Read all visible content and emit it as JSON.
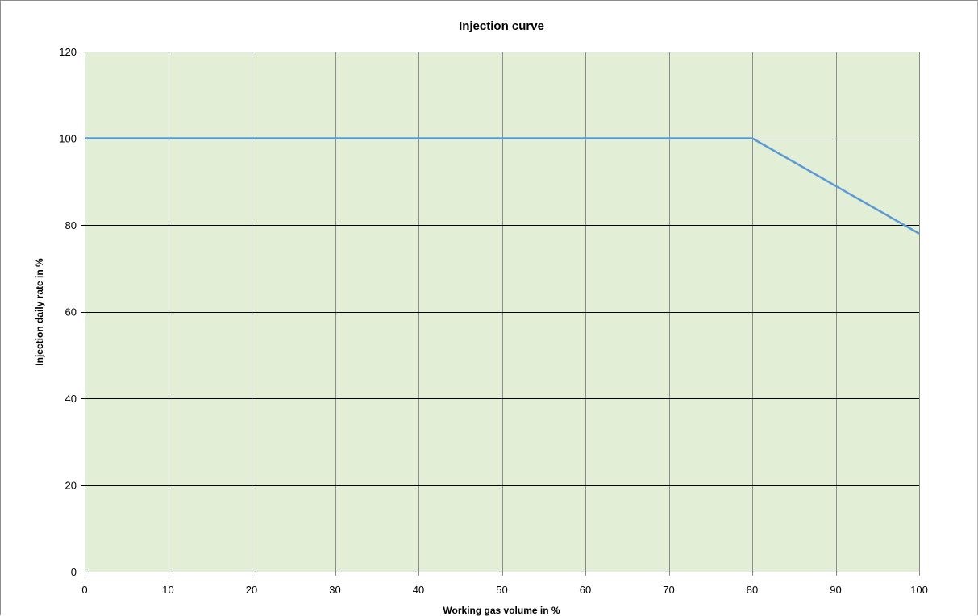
{
  "chart_data": {
    "type": "line",
    "title": "Injection curve",
    "xlabel": "Working gas volume in %",
    "ylabel": "Injection daily rate in %",
    "xlim": [
      0,
      100
    ],
    "ylim": [
      0,
      120
    ],
    "x_ticks": [
      0,
      10,
      20,
      30,
      40,
      50,
      60,
      70,
      80,
      90,
      100
    ],
    "y_ticks": [
      0,
      20,
      40,
      60,
      80,
      100,
      120
    ],
    "grid": true,
    "legend": "none",
    "series": [
      {
        "color": "#5b9bd5",
        "points": [
          {
            "x": 0,
            "y": 100
          },
          {
            "x": 80,
            "y": 100
          },
          {
            "x": 100,
            "y": 78
          }
        ]
      }
    ],
    "colors": {
      "plot_background": "#e3eed7",
      "vertical_grid": "#8c8c8c",
      "horizontal_grid": "#000000"
    }
  }
}
